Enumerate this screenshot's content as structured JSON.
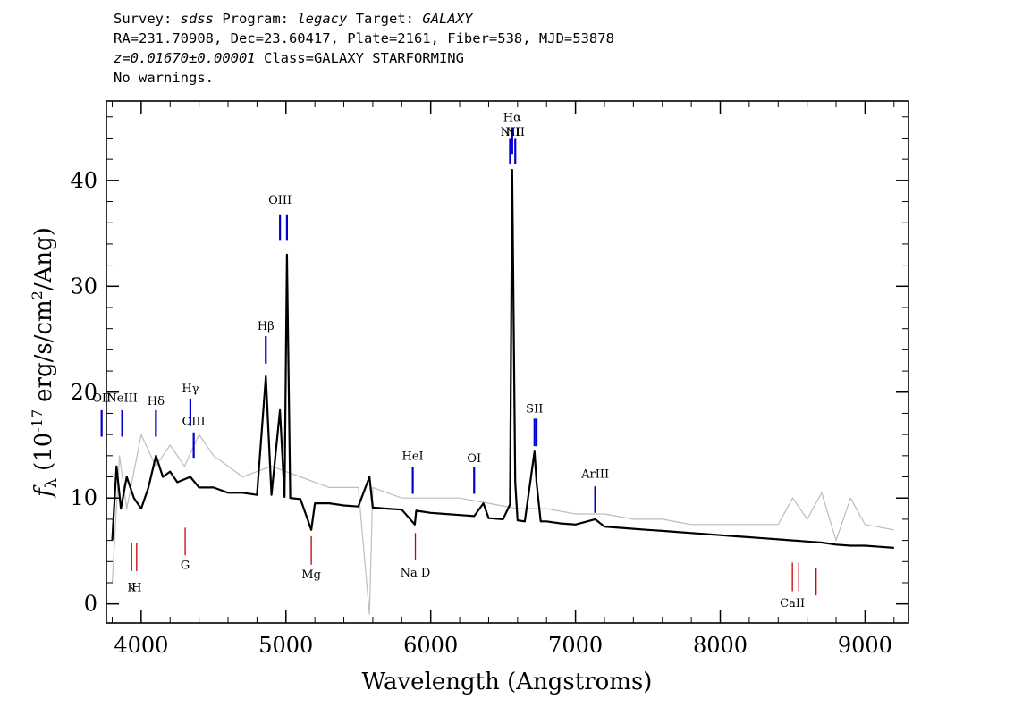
{
  "header": {
    "survey_label": "Survey:",
    "survey_value": "sdss",
    "program_label": "Program:",
    "program_value": "legacy",
    "target_label": "Target:",
    "target_value": "GALAXY",
    "coords_line": "RA=231.70908, Dec=23.60417, Plate=2161, Fiber=538, MJD=53878",
    "redshift_value": "z=0.01670±0.00001",
    "class_text": "Class=GALAXY STARFORMING",
    "warnings": "No warnings."
  },
  "chart_data": {
    "type": "line",
    "xlabel": "Wavelength (Angstroms)",
    "ylabel_parts": {
      "f": "f",
      "lambda": "λ",
      "pre": "(10",
      "exp1": "-17",
      "mid": "erg/s/cm",
      "exp2": "2",
      "post": "/Ang)"
    },
    "xlim": [
      3760,
      9300
    ],
    "ylim": [
      -1.8,
      47.5
    ],
    "xticks": [
      4000,
      5000,
      6000,
      7000,
      8000,
      9000
    ],
    "yticks": [
      0,
      10,
      20,
      30,
      40
    ],
    "series": [
      {
        "role": "model",
        "color": "#000000",
        "points": [
          [
            3800,
            6
          ],
          [
            3830,
            13
          ],
          [
            3860,
            9
          ],
          [
            3900,
            12
          ],
          [
            3950,
            10
          ],
          [
            4000,
            9
          ],
          [
            4050,
            11
          ],
          [
            4102,
            14
          ],
          [
            4150,
            12
          ],
          [
            4200,
            12.5
          ],
          [
            4250,
            11.5
          ],
          [
            4340,
            12
          ],
          [
            4400,
            11
          ],
          [
            4500,
            11
          ],
          [
            4600,
            10.5
          ],
          [
            4700,
            10.5
          ],
          [
            4800,
            10.3
          ],
          [
            4861,
            21.5
          ],
          [
            4900,
            10.3
          ],
          [
            4959,
            18.3
          ],
          [
            4990,
            10.1
          ],
          [
            5007,
            33
          ],
          [
            5030,
            10
          ],
          [
            5100,
            9.9
          ],
          [
            5175,
            7
          ],
          [
            5200,
            9.5
          ],
          [
            5300,
            9.5
          ],
          [
            5400,
            9.3
          ],
          [
            5500,
            9.2
          ],
          [
            5577,
            12
          ],
          [
            5600,
            9.1
          ],
          [
            5700,
            9
          ],
          [
            5800,
            8.9
          ],
          [
            5890,
            7.5
          ],
          [
            5900,
            8.8
          ],
          [
            6000,
            8.6
          ],
          [
            6100,
            8.5
          ],
          [
            6200,
            8.4
          ],
          [
            6300,
            8.3
          ],
          [
            6364,
            9.5
          ],
          [
            6400,
            8.1
          ],
          [
            6500,
            8
          ],
          [
            6548,
            9.4
          ],
          [
            6563,
            41
          ],
          [
            6584,
            11.5
          ],
          [
            6600,
            7.9
          ],
          [
            6650,
            7.8
          ],
          [
            6717,
            14.4
          ],
          [
            6731,
            11.5
          ],
          [
            6760,
            7.8
          ],
          [
            6800,
            7.8
          ],
          [
            6900,
            7.6
          ],
          [
            7000,
            7.5
          ],
          [
            7136,
            8
          ],
          [
            7200,
            7.3
          ],
          [
            7300,
            7.2
          ],
          [
            7400,
            7.1
          ],
          [
            7500,
            7
          ],
          [
            7600,
            6.9
          ],
          [
            7700,
            6.8
          ],
          [
            7800,
            6.7
          ],
          [
            7900,
            6.6
          ],
          [
            8000,
            6.5
          ],
          [
            8100,
            6.4
          ],
          [
            8200,
            6.3
          ],
          [
            8300,
            6.2
          ],
          [
            8400,
            6.1
          ],
          [
            8500,
            6
          ],
          [
            8600,
            5.9
          ],
          [
            8700,
            5.8
          ],
          [
            8800,
            5.6
          ],
          [
            8900,
            5.5
          ],
          [
            9000,
            5.5
          ],
          [
            9100,
            5.4
          ],
          [
            9200,
            5.3
          ]
        ]
      },
      {
        "role": "error",
        "color": "#bdbdbd",
        "points": [
          [
            3800,
            2
          ],
          [
            3850,
            14
          ],
          [
            3900,
            9
          ],
          [
            4000,
            16
          ],
          [
            4100,
            13
          ],
          [
            4200,
            15
          ],
          [
            4300,
            13
          ],
          [
            4400,
            16
          ],
          [
            4500,
            14
          ],
          [
            4700,
            12
          ],
          [
            4900,
            13
          ],
          [
            5100,
            12
          ],
          [
            5300,
            11
          ],
          [
            5500,
            11
          ],
          [
            5577,
            -1
          ],
          [
            5600,
            11
          ],
          [
            5800,
            10
          ],
          [
            6000,
            10
          ],
          [
            6200,
            10
          ],
          [
            6400,
            9.5
          ],
          [
            6600,
            9
          ],
          [
            6800,
            9
          ],
          [
            7000,
            8.5
          ],
          [
            7200,
            8.5
          ],
          [
            7400,
            8
          ],
          [
            7600,
            8
          ],
          [
            7800,
            7.5
          ],
          [
            8000,
            7.5
          ],
          [
            8200,
            7.5
          ],
          [
            8400,
            7.5
          ],
          [
            8500,
            10
          ],
          [
            8600,
            8
          ],
          [
            8700,
            10.5
          ],
          [
            8800,
            6
          ],
          [
            8900,
            10
          ],
          [
            9000,
            7.5
          ],
          [
            9200,
            7
          ]
        ]
      }
    ],
    "emission_lines": [
      {
        "label": "OII",
        "wavelength": 3727,
        "y_low": 15.8,
        "y_high": 18.3,
        "label_y": 19.1
      },
      {
        "label": "NeIII",
        "wavelength": 3869,
        "y_low": 15.8,
        "y_high": 18.3,
        "label_y": 19.1
      },
      {
        "label": "Hδ",
        "wavelength": 4102,
        "y_low": 15.8,
        "y_high": 18.3,
        "label_y": 18.8
      },
      {
        "label": "Hγ",
        "wavelength": 4340,
        "y_low": 16.8,
        "y_high": 19.4,
        "label_y": 20
      },
      {
        "label": "OIII",
        "wavelength": 4363,
        "y_low": 13.8,
        "y_high": 16.2,
        "label_y": 16.9
      },
      {
        "label": "Hβ",
        "wavelength": 4861,
        "y_low": 22.7,
        "y_high": 25.3,
        "label_y": 25.9
      },
      {
        "label": "OIII",
        "wavelength": 4959,
        "y_low": 34.3,
        "y_high": 36.8,
        "label_y": 37.8
      },
      {
        "label": "",
        "wavelength": 5007,
        "y_low": 34.3,
        "y_high": 36.8,
        "label_y": 37.8
      },
      {
        "label": "HeI",
        "wavelength": 5876,
        "y_low": 10.4,
        "y_high": 12.9,
        "label_y": 13.6
      },
      {
        "label": "OI",
        "wavelength": 6300,
        "y_low": 10.4,
        "y_high": 12.9,
        "label_y": 13.4
      },
      {
        "label": "NII",
        "wavelength": 6548,
        "y_low": 41.5,
        "y_high": 44,
        "label_y": 44.2
      },
      {
        "label": "Hα",
        "wavelength": 6563,
        "y_low": 42.5,
        "y_high": 45,
        "label_y": 45.6
      },
      {
        "label": "NII",
        "wavelength": 6584,
        "y_low": 41.5,
        "y_high": 44,
        "label_y": 44.2
      },
      {
        "label": "SII",
        "wavelength": 6717,
        "y_low": 14.9,
        "y_high": 17.5,
        "label_y": 18.1
      },
      {
        "label": "",
        "wavelength": 6731,
        "y_low": 14.9,
        "y_high": 17.5,
        "label_y": 18.1
      },
      {
        "label": "ArIII",
        "wavelength": 7136,
        "y_low": 8.6,
        "y_high": 11.1,
        "label_y": 11.9
      }
    ],
    "absorption_lines": [
      {
        "label": "K",
        "wavelength": 3934,
        "y_low": 3.1,
        "y_high": 5.8,
        "label_y": 1.2
      },
      {
        "label": "H",
        "wavelength": 3969,
        "y_low": 3.1,
        "y_high": 5.8,
        "label_y": 1.2
      },
      {
        "label": "G",
        "wavelength": 4304,
        "y_low": 4.6,
        "y_high": 7.2,
        "label_y": 3.3
      },
      {
        "label": "Mg",
        "wavelength": 5175,
        "y_low": 3.7,
        "y_high": 6.4,
        "label_y": 2.4
      },
      {
        "label": "Na D",
        "wavelength": 5894,
        "y_low": 4.2,
        "y_high": 6.7,
        "label_y": 2.6
      },
      {
        "label": "CaII",
        "wavelength": 8498,
        "y_low": 1.2,
        "y_high": 3.9,
        "label_y": -0.3
      },
      {
        "label": "",
        "wavelength": 8542,
        "y_low": 1.2,
        "y_high": 3.9,
        "label_y": -0.3
      },
      {
        "label": "",
        "wavelength": 8662,
        "y_low": 0.8,
        "y_high": 3.4,
        "label_y": -0.3
      }
    ],
    "emission_color": "#0000cc",
    "absorption_color": "#cc0000"
  }
}
